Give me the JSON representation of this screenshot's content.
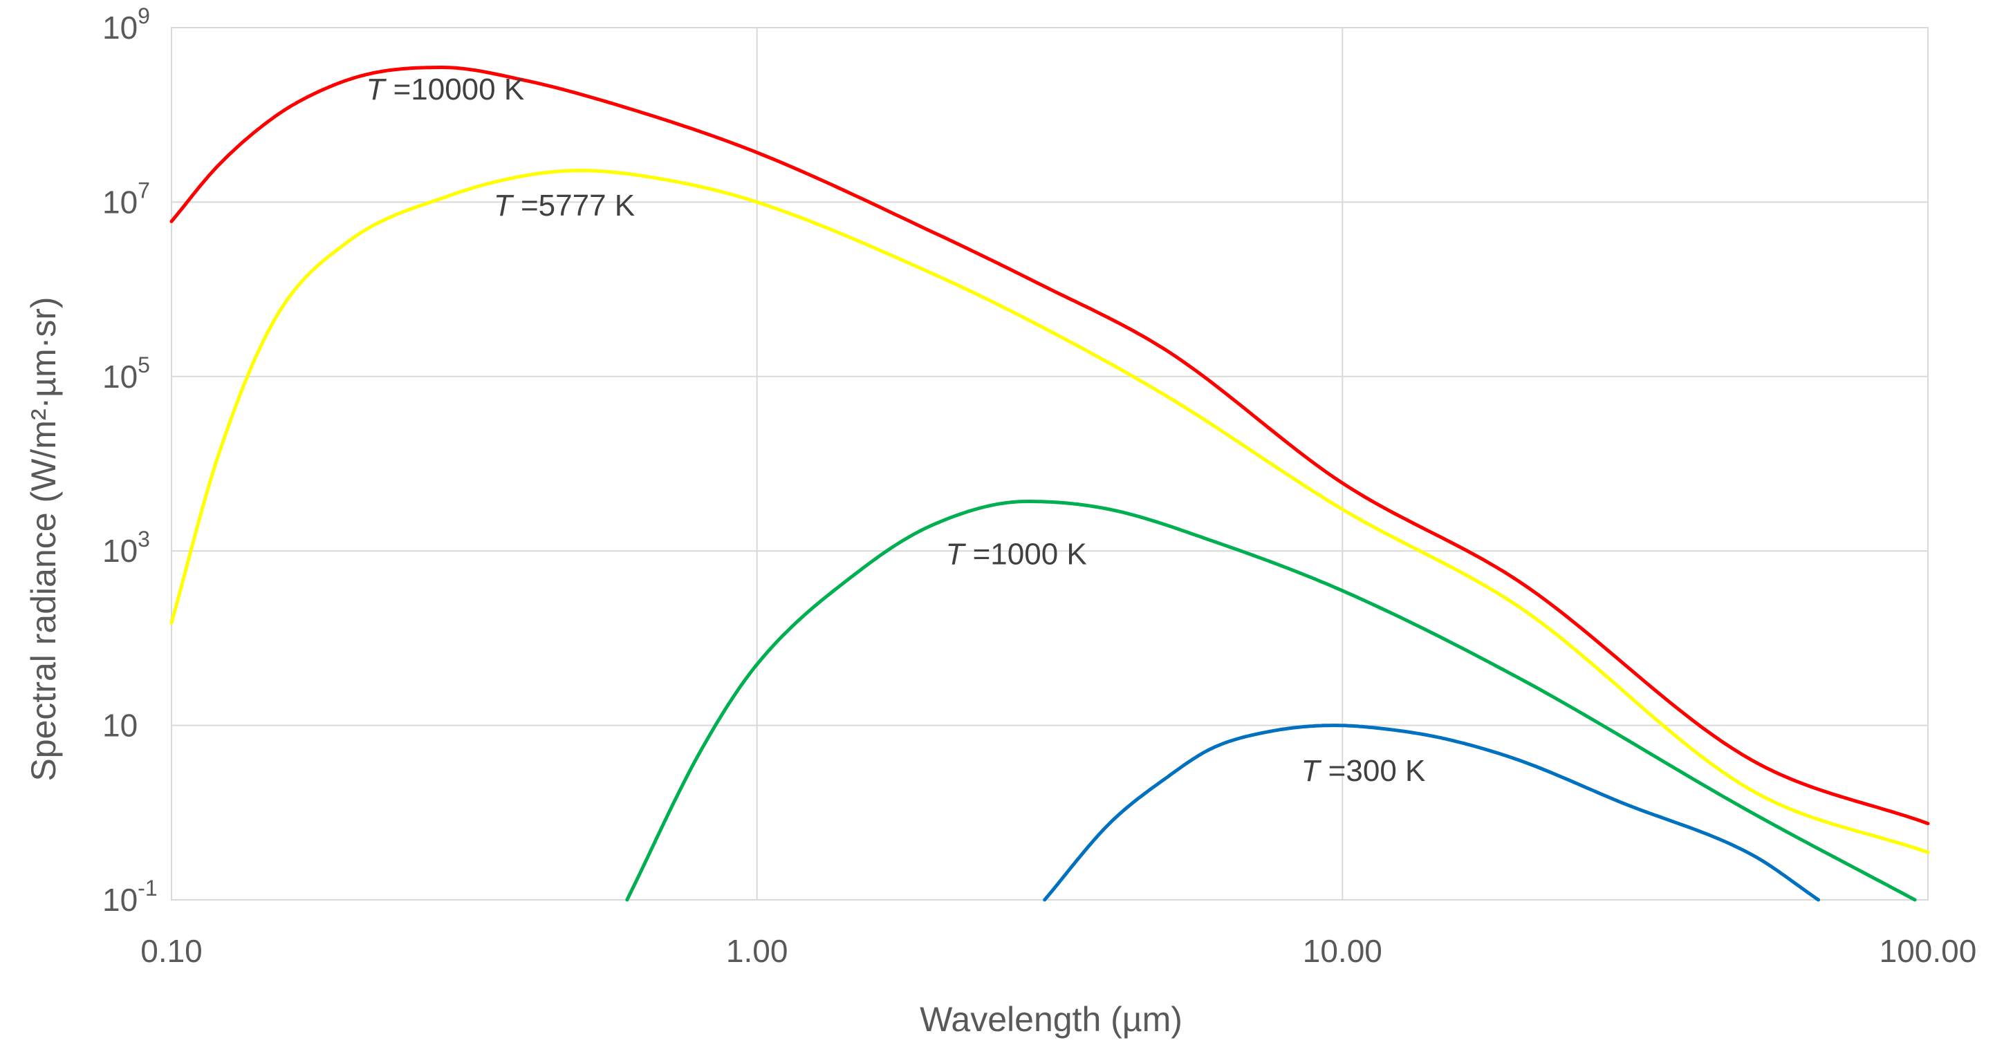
{
  "chart_data": {
    "type": "line",
    "title": "",
    "xlabel": "Wavelength (µm)",
    "ylabel": "Spectral radiance (W/m²·µm·sr)",
    "x_scale": "log",
    "y_scale": "log",
    "xlim": [
      0.1,
      100
    ],
    "ylim": [
      0.1,
      1000000000
    ],
    "grid": true,
    "x_ticks": [
      {
        "value": 0.1,
        "label": "0.10"
      },
      {
        "value": 1,
        "label": "1.00"
      },
      {
        "value": 10,
        "label": "10.00"
      },
      {
        "value": 100,
        "label": "100.00"
      }
    ],
    "y_ticks": [
      {
        "value": 0.1,
        "base": "10",
        "exp": "-1"
      },
      {
        "value": 10,
        "base": "10",
        "exp": ""
      },
      {
        "value": 1000,
        "base": "10",
        "exp": "3"
      },
      {
        "value": 100000,
        "base": "10",
        "exp": "5"
      },
      {
        "value": 10000000,
        "base": "10",
        "exp": "7"
      },
      {
        "value": 1000000000,
        "base": "10",
        "exp": "9"
      }
    ],
    "series": [
      {
        "temperature": 10000,
        "label_italic": "T",
        "label_rest": " =10000 K",
        "color": "#ff0000",
        "label_at": {
          "x": 0.215,
          "y": 150000000
        },
        "points": [
          [
            0.1,
            6000000
          ],
          [
            0.12,
            26000000
          ],
          [
            0.15,
            95000000
          ],
          [
            0.18,
            190000000
          ],
          [
            0.22,
            300000000
          ],
          [
            0.29,
            350000000
          ],
          [
            0.4,
            250000000
          ],
          [
            0.6,
            120000000
          ],
          [
            1.0,
            37000000
          ],
          [
            2.0,
            4500000
          ],
          [
            3.0,
            1200000
          ],
          [
            5.0,
            200000
          ],
          [
            10.0,
            6000
          ],
          [
            20.0,
            450
          ],
          [
            50.0,
            4
          ],
          [
            100.0,
            0.75
          ]
        ]
      },
      {
        "temperature": 5777,
        "label_italic": "T",
        "label_rest": " =5777 K",
        "color": "#ffff00",
        "label_at": {
          "x": 0.355,
          "y": 7000000
        },
        "points": [
          [
            0.1,
            150
          ],
          [
            0.12,
            12000
          ],
          [
            0.15,
            450000
          ],
          [
            0.2,
            3500000
          ],
          [
            0.3,
            12000000
          ],
          [
            0.4,
            20000000
          ],
          [
            0.5,
            23000000
          ],
          [
            0.7,
            18000000
          ],
          [
            1.0,
            10000000
          ],
          [
            2.0,
            1500000
          ],
          [
            3.0,
            400000
          ],
          [
            5.0,
            60000
          ],
          [
            10.0,
            3000
          ],
          [
            20.0,
            230
          ],
          [
            50.0,
            1.8
          ],
          [
            100.0,
            0.35
          ]
        ]
      },
      {
        "temperature": 1000,
        "label_italic": "T",
        "label_rest": " =1000 K",
        "color": "#00b050",
        "label_at": {
          "x": 2.1,
          "y": 700
        },
        "points": [
          [
            0.6,
            0.1
          ],
          [
            0.8,
            5
          ],
          [
            1.0,
            50
          ],
          [
            1.5,
            600
          ],
          [
            2.0,
            2000
          ],
          [
            2.9,
            3700
          ],
          [
            4.0,
            3000
          ],
          [
            6.0,
            1300
          ],
          [
            10.0,
            350
          ],
          [
            20.0,
            35
          ],
          [
            50.0,
            1
          ],
          [
            95.0,
            0.1
          ]
        ]
      },
      {
        "temperature": 300,
        "label_italic": "T",
        "label_rest": " =300 K",
        "color": "#0070c0",
        "label_at": {
          "x": 8.5,
          "y": 2.3
        },
        "points": [
          [
            3.1,
            0.1
          ],
          [
            4.0,
            0.75
          ],
          [
            5.0,
            2.5
          ],
          [
            6.0,
            5.5
          ],
          [
            7.5,
            8.5
          ],
          [
            9.7,
            10
          ],
          [
            12.0,
            9
          ],
          [
            15.0,
            7
          ],
          [
            20.0,
            4
          ],
          [
            30.0,
            1.3
          ],
          [
            50.0,
            0.33
          ],
          [
            65.0,
            0.1
          ]
        ]
      }
    ]
  }
}
